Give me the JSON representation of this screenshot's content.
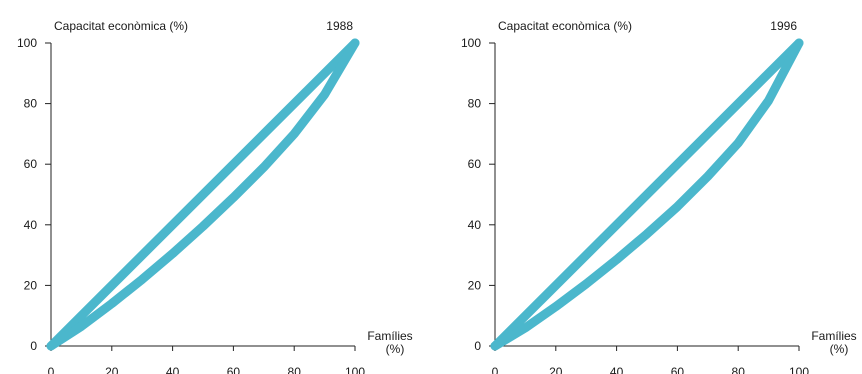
{
  "chart_data": [
    {
      "type": "line",
      "year_label": "1988",
      "ylabel": "Capacitat econòmica (%)",
      "xlabel_line1": "Famílies",
      "xlabel_line2": "(%)",
      "xlim": [
        0,
        100
      ],
      "ylim": [
        0,
        100
      ],
      "xticks": [
        "0",
        "20",
        "40",
        "60",
        "80",
        "100"
      ],
      "yticks": [
        "0",
        "20",
        "40",
        "60",
        "80",
        "100"
      ],
      "grid": false,
      "line_color": "#4bb7cc",
      "series": [
        {
          "x": [
            0,
            100
          ],
          "y": [
            0,
            100
          ]
        },
        {
          "x": [
            0,
            10,
            20,
            30,
            40,
            50,
            60,
            70,
            80,
            90,
            100
          ],
          "y": [
            0,
            6.5,
            14,
            22,
            30.5,
            39.5,
            49,
            59,
            70,
            83,
            100
          ]
        }
      ]
    },
    {
      "type": "line",
      "year_label": "1996",
      "ylabel": "Capacitat econòmica (%)",
      "xlabel_line1": "Famílies",
      "xlabel_line2": "(%)",
      "xlim": [
        0,
        100
      ],
      "ylim": [
        0,
        100
      ],
      "xticks": [
        "0",
        "20",
        "40",
        "60",
        "80",
        "100"
      ],
      "yticks": [
        "0",
        "20",
        "40",
        "60",
        "80",
        "100"
      ],
      "grid": false,
      "line_color": "#4bb7cc",
      "series": [
        {
          "x": [
            0,
            100
          ],
          "y": [
            0,
            100
          ]
        },
        {
          "x": [
            0,
            10,
            20,
            30,
            40,
            50,
            60,
            70,
            80,
            90,
            100
          ],
          "y": [
            0,
            6,
            13,
            20.5,
            28.5,
            37,
            46,
            56,
            67,
            81,
            100
          ]
        }
      ]
    }
  ]
}
